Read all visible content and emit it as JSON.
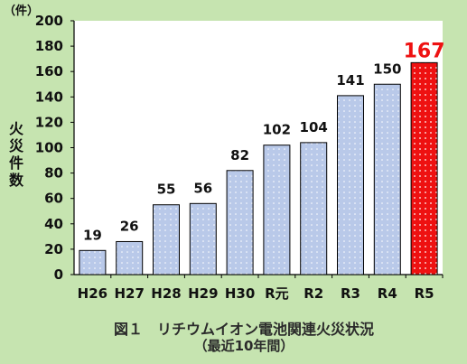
{
  "chart_data": {
    "type": "bar",
    "categories": [
      "H26",
      "H27",
      "H28",
      "H29",
      "H30",
      "R元",
      "R2",
      "R3",
      "R4",
      "R5"
    ],
    "values": [
      19,
      26,
      55,
      56,
      82,
      102,
      104,
      141,
      150,
      167
    ],
    "data_labels": [
      "19",
      "26",
      "55",
      "56",
      "82",
      "102",
      "104",
      "141",
      "150",
      "167"
    ],
    "y_ticks": [
      "0",
      "20",
      "40",
      "60",
      "80",
      "100",
      "120",
      "140",
      "160",
      "180",
      "200"
    ],
    "ylim": [
      0,
      200
    ],
    "y_unit": "（件）",
    "ylabel": "火災件数",
    "highlight_index": 9,
    "colors": {
      "bar_fill": "#b9c9e9",
      "bar_dot": "#ffffff",
      "highlight_fill": "#ee1111",
      "highlight_dot": "#ffffff",
      "highlight_label": "#ee1111"
    }
  },
  "caption": {
    "title": "図１　リチウムイオン電池関連火災状況",
    "subtitle": "（最近10年間）"
  }
}
